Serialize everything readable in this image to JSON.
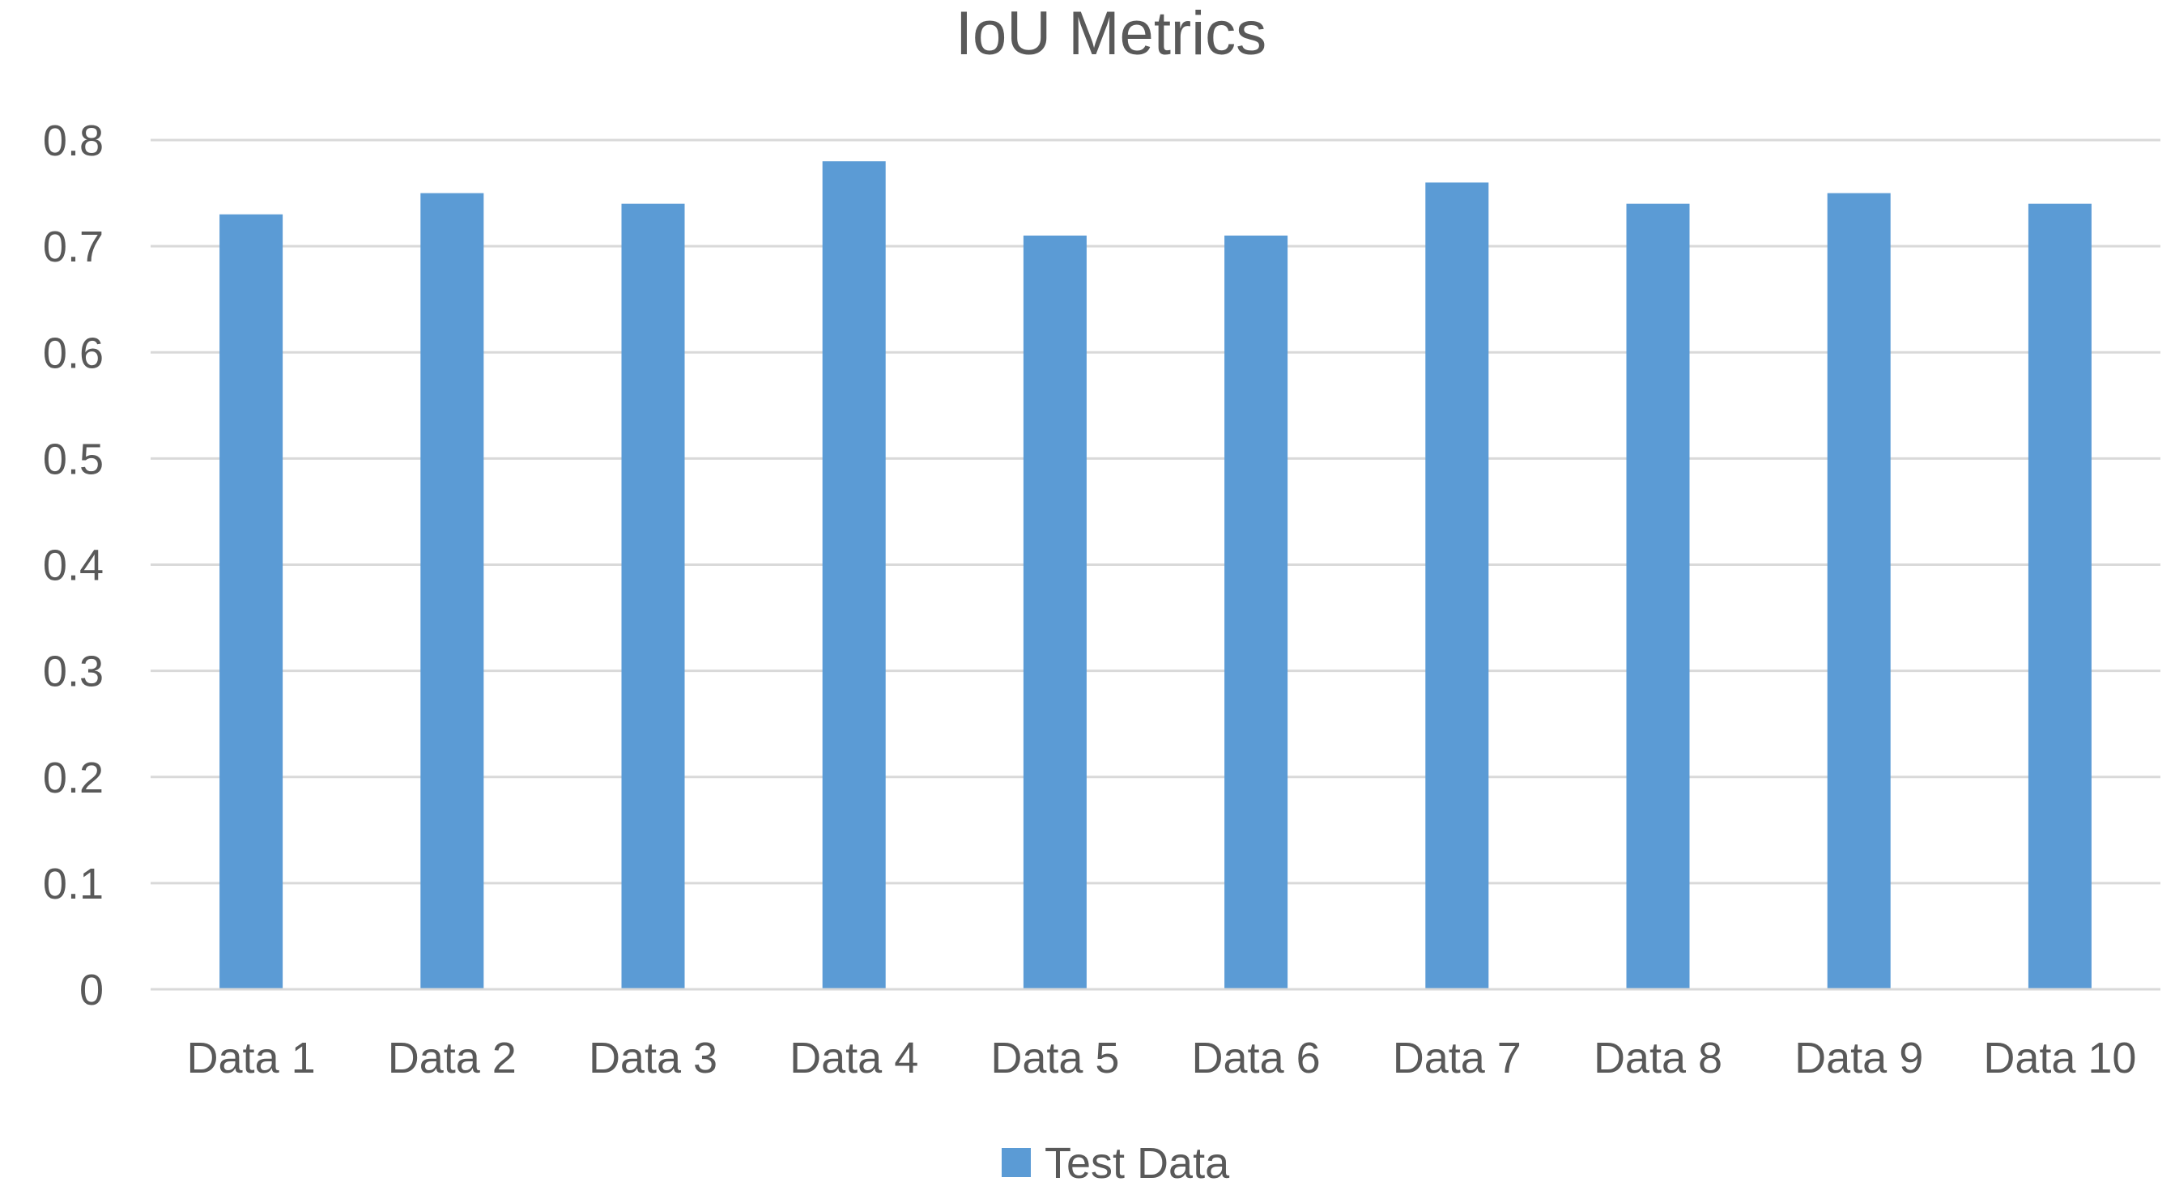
{
  "chart_data": {
    "type": "bar",
    "title": "IoU Metrics",
    "xlabel": "",
    "ylabel": "",
    "categories": [
      "Data  1",
      "Data 2",
      "Data 3",
      "Data 4",
      "Data 5",
      "Data 6",
      "Data 7",
      "Data 8",
      "Data 9",
      "Data 10"
    ],
    "series": [
      {
        "name": "Test Data",
        "values": [
          0.73,
          0.75,
          0.74,
          0.78,
          0.71,
          0.71,
          0.76,
          0.74,
          0.75,
          0.74
        ],
        "color": "#5b9bd5"
      }
    ],
    "ylim": [
      0,
      0.8
    ],
    "yticks": [
      "0",
      "0.1",
      "0.2",
      "0.3",
      "0.4",
      "0.5",
      "0.6",
      "0.7",
      "0.8"
    ],
    "grid": true,
    "legend_position": "bottom"
  }
}
